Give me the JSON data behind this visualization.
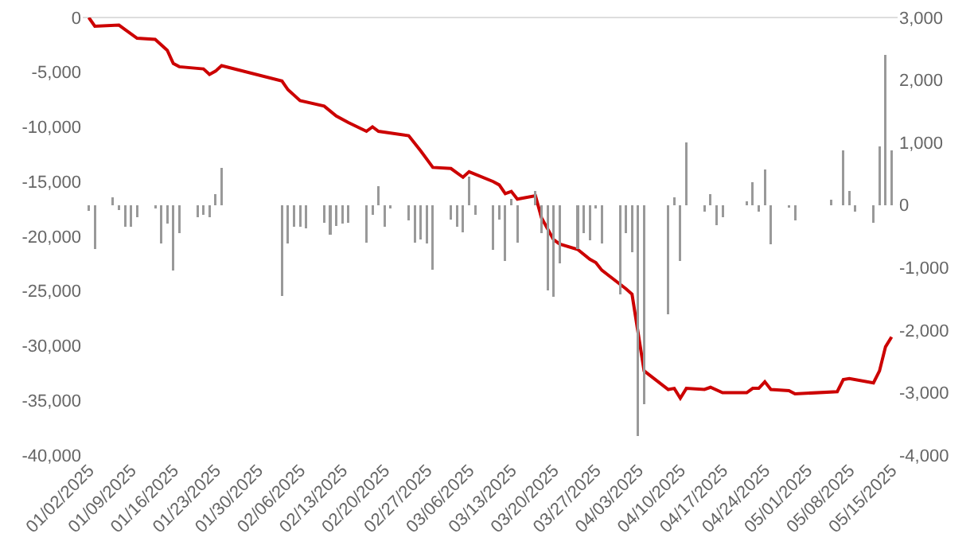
{
  "chart_data": {
    "type": "bar",
    "grid": false,
    "xlim": [
      "2025-01-01",
      "2025-05-16"
    ],
    "xticks": [
      {
        "value": "2025-01-02",
        "label": "01/02/2025"
      },
      {
        "value": "2025-01-09",
        "label": "01/09/2025"
      },
      {
        "value": "2025-01-16",
        "label": "01/16/2025"
      },
      {
        "value": "2025-01-23",
        "label": "01/23/2025"
      },
      {
        "value": "2025-01-30",
        "label": "01/30/2025"
      },
      {
        "value": "2025-02-06",
        "label": "02/06/2025"
      },
      {
        "value": "2025-02-13",
        "label": "02/13/2025"
      },
      {
        "value": "2025-02-20",
        "label": "02/20/2025"
      },
      {
        "value": "2025-02-27",
        "label": "02/27/2025"
      },
      {
        "value": "2025-03-06",
        "label": "03/06/2025"
      },
      {
        "value": "2025-03-13",
        "label": "03/13/2025"
      },
      {
        "value": "2025-03-20",
        "label": "03/20/2025"
      },
      {
        "value": "2025-03-27",
        "label": "03/27/2025"
      },
      {
        "value": "2025-04-03",
        "label": "04/03/2025"
      },
      {
        "value": "2025-04-10",
        "label": "04/10/2025"
      },
      {
        "value": "2025-04-17",
        "label": "04/17/2025"
      },
      {
        "value": "2025-04-24",
        "label": "04/24/2025"
      },
      {
        "value": "2025-05-01",
        "label": "05/01/2025"
      },
      {
        "value": "2025-05-08",
        "label": "05/08/2025"
      },
      {
        "value": "2025-05-15",
        "label": "05/15/2025"
      }
    ],
    "ylim": [
      -40000,
      0
    ],
    "yticks": [
      {
        "value": 0,
        "label": "0"
      },
      {
        "value": -5000,
        "label": "-5,000"
      },
      {
        "value": -10000,
        "label": "-10,000"
      },
      {
        "value": -15000,
        "label": "-15,000"
      },
      {
        "value": -20000,
        "label": "-20,000"
      },
      {
        "value": -25000,
        "label": "-25,000"
      },
      {
        "value": -30000,
        "label": "-30,000"
      },
      {
        "value": -35000,
        "label": "-35,000"
      },
      {
        "value": -40000,
        "label": "-40,000"
      }
    ],
    "y2lim": [
      -4000,
      3000
    ],
    "y2ticks": [
      {
        "value": 3000,
        "label": "3,000"
      },
      {
        "value": 2000,
        "label": "2,000"
      },
      {
        "value": 1000,
        "label": "1,000"
      },
      {
        "value": 0,
        "label": "0"
      },
      {
        "value": -1000,
        "label": "-1,000"
      },
      {
        "value": -2000,
        "label": "-2,000"
      },
      {
        "value": -3000,
        "label": "-3,000"
      },
      {
        "value": -4000,
        "label": "-4,000"
      }
    ],
    "series": [
      {
        "axis": "y2",
        "color": "#999999",
        "x": [
          "2025-01-02",
          "2025-01-03",
          "2025-01-06",
          "2025-01-07",
          "2025-01-08",
          "2025-01-09",
          "2025-01-10",
          "2025-01-13",
          "2025-01-14",
          "2025-01-15",
          "2025-01-16",
          "2025-01-17",
          "2025-01-20",
          "2025-01-21",
          "2025-01-22",
          "2025-01-23",
          "2025-01-24",
          "2025-02-03",
          "2025-02-04",
          "2025-02-05",
          "2025-02-06",
          "2025-02-07",
          "2025-02-10",
          "2025-02-11",
          "2025-02-12",
          "2025-02-13",
          "2025-02-14",
          "2025-02-17",
          "2025-02-18",
          "2025-02-19",
          "2025-02-20",
          "2025-02-21",
          "2025-02-24",
          "2025-02-25",
          "2025-02-26",
          "2025-02-27",
          "2025-02-28",
          "2025-03-03",
          "2025-03-04",
          "2025-03-05",
          "2025-03-06",
          "2025-03-07",
          "2025-03-10",
          "2025-03-11",
          "2025-03-12",
          "2025-03-13",
          "2025-03-14",
          "2025-03-17",
          "2025-03-18",
          "2025-03-19",
          "2025-03-20",
          "2025-03-21",
          "2025-03-24",
          "2025-03-25",
          "2025-03-26",
          "2025-03-27",
          "2025-03-28",
          "2025-03-31",
          "2025-04-01",
          "2025-04-02",
          "2025-04-03",
          "2025-04-04",
          "2025-04-08",
          "2025-04-09",
          "2025-04-10",
          "2025-04-11",
          "2025-04-14",
          "2025-04-15",
          "2025-04-16",
          "2025-04-17",
          "2025-04-18",
          "2025-04-21",
          "2025-04-22",
          "2025-04-23",
          "2025-04-24",
          "2025-04-25",
          "2025-04-28",
          "2025-04-29",
          "2025-05-05",
          "2025-05-06",
          "2025-05-07",
          "2025-05-08",
          "2025-05-09",
          "2025-05-12",
          "2025-05-13",
          "2025-05-14",
          "2025-05-15"
        ],
        "values": [
          -90,
          -700,
          120,
          -80,
          -350,
          -350,
          -200,
          -60,
          -620,
          -300,
          -1050,
          -450,
          -200,
          -150,
          -200,
          170,
          600,
          -1450,
          -620,
          -350,
          -350,
          -370,
          -280,
          -470,
          -330,
          -300,
          -280,
          -600,
          -150,
          300,
          -350,
          -60,
          -250,
          -600,
          -550,
          -620,
          -1030,
          -230,
          -350,
          -430,
          450,
          -160,
          -720,
          -230,
          -900,
          100,
          -600,
          220,
          -450,
          -1370,
          -1470,
          -930,
          -700,
          -450,
          -560,
          -50,
          -620,
          -1430,
          -450,
          -750,
          -3690,
          -3180,
          -1750,
          130,
          -900,
          1000,
          -100,
          180,
          -320,
          -200,
          null,
          60,
          370,
          -100,
          570,
          -630,
          -40,
          -250,
          80,
          null,
          870,
          230,
          -100,
          -280,
          940,
          2400,
          870
        ]
      },
      {
        "type": "line",
        "color": "#cc0000",
        "x": [
          "2025-01-02",
          "2025-01-03",
          "2025-01-07",
          "2025-01-08",
          "2025-01-10",
          "2025-01-13",
          "2025-01-15",
          "2025-01-16",
          "2025-01-17",
          "2025-01-21",
          "2025-01-22",
          "2025-01-23",
          "2025-01-24",
          "2025-02-03",
          "2025-02-04",
          "2025-02-06",
          "2025-02-10",
          "2025-02-12",
          "2025-02-14",
          "2025-02-17",
          "2025-02-18",
          "2025-02-19",
          "2025-02-24",
          "2025-02-26",
          "2025-02-28",
          "2025-03-03",
          "2025-03-05",
          "2025-03-06",
          "2025-03-10",
          "2025-03-11",
          "2025-03-12",
          "2025-03-13",
          "2025-03-14",
          "2025-03-17",
          "2025-03-18",
          "2025-03-20",
          "2025-03-21",
          "2025-03-24",
          "2025-03-26",
          "2025-03-27",
          "2025-03-28",
          "2025-04-01",
          "2025-04-02",
          "2025-04-04",
          "2025-04-08",
          "2025-04-09",
          "2025-04-10",
          "2025-04-11",
          "2025-04-14",
          "2025-04-15",
          "2025-04-17",
          "2025-04-21",
          "2025-04-22",
          "2025-04-23",
          "2025-04-24",
          "2025-04-25",
          "2025-04-28",
          "2025-04-29",
          "2025-05-06",
          "2025-05-07",
          "2025-05-08",
          "2025-05-12",
          "2025-05-13",
          "2025-05-14",
          "2025-05-15"
        ],
        "values": [
          0,
          -800,
          -700,
          -1100,
          -1900,
          -2000,
          -3000,
          -4200,
          -4500,
          -4700,
          -5200,
          -4900,
          -4400,
          -5800,
          -6600,
          -7600,
          -8100,
          -9000,
          -9600,
          -10400,
          -10000,
          -10400,
          -10800,
          -12200,
          -13700,
          -13800,
          -14600,
          -14100,
          -15000,
          -15300,
          -16100,
          -15900,
          -16600,
          -16300,
          -18300,
          -20300,
          -20700,
          -21200,
          -22100,
          -22400,
          -23100,
          -24800,
          -25300,
          -32300,
          -34000,
          -33900,
          -34800,
          -33900,
          -34000,
          -33800,
          -34300,
          -34300,
          -33900,
          -33900,
          -33300,
          -34000,
          -34100,
          -34400,
          -34200,
          -33100,
          -33000,
          -33400,
          -32300,
          -30100,
          -29200
        ]
      }
    ]
  }
}
